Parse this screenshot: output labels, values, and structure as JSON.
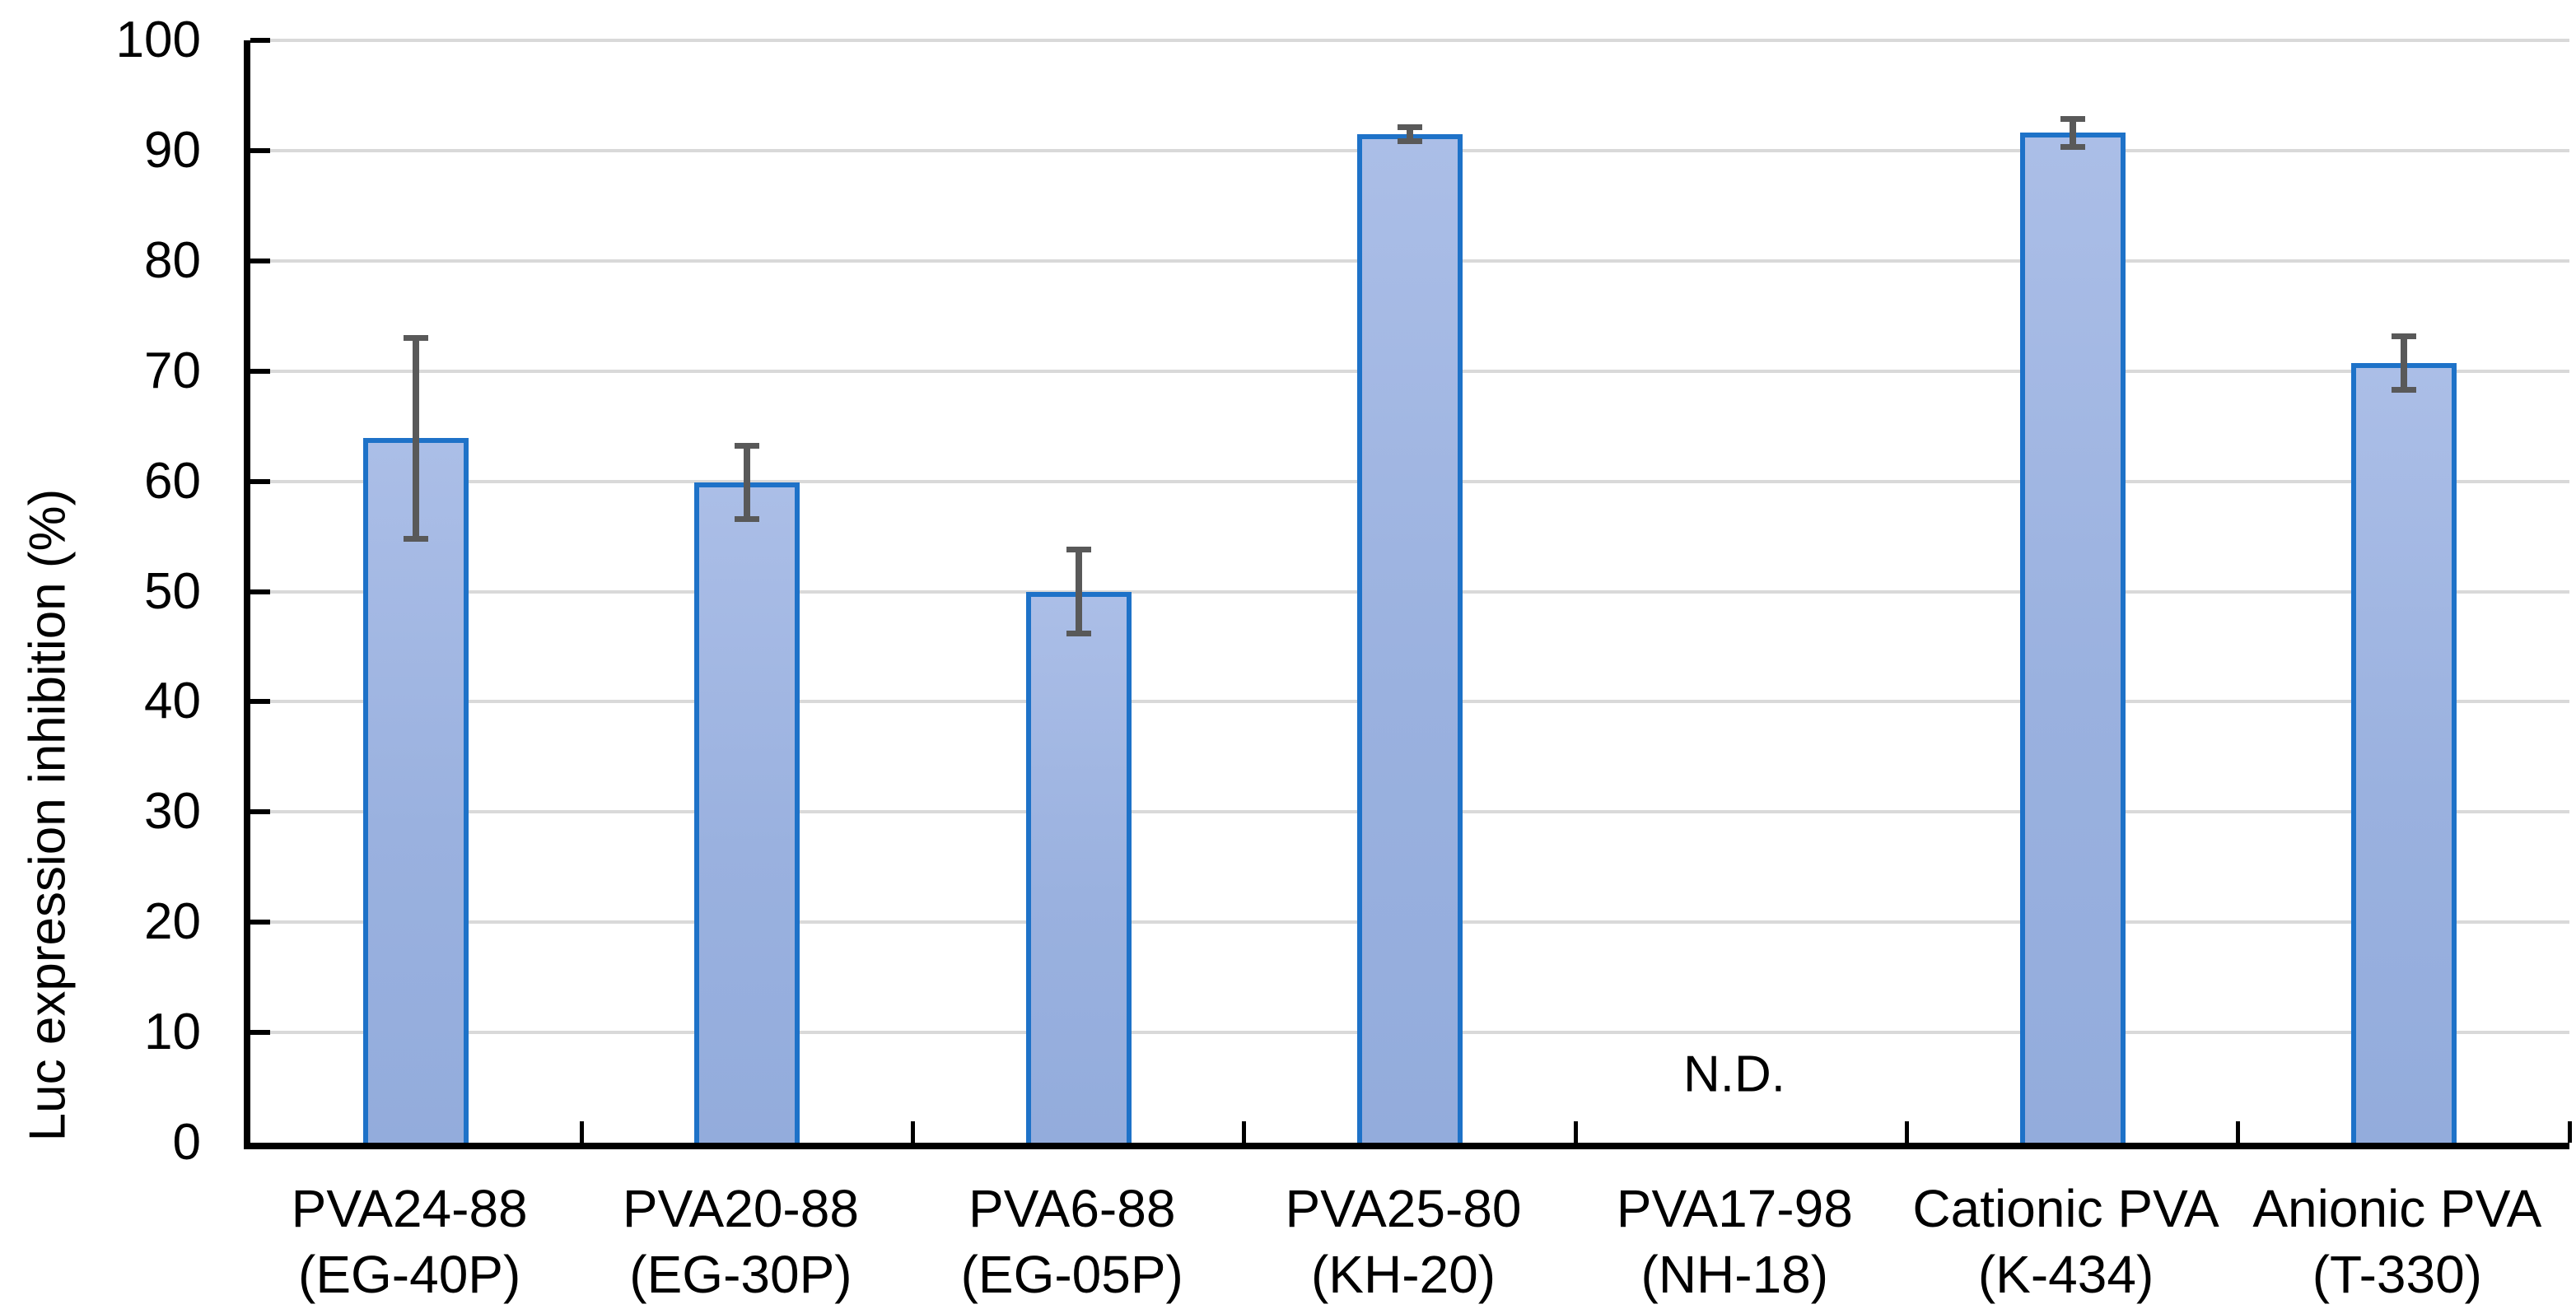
{
  "chart_data": {
    "type": "bar",
    "title": "",
    "ylabel": "Luc expression inhibition (%)",
    "xlabel": "",
    "ylim": [
      0,
      100
    ],
    "ytick_step": 10,
    "yticks": [
      "0",
      "10",
      "20",
      "30",
      "40",
      "50",
      "60",
      "70",
      "80",
      "90",
      "100"
    ],
    "grid": true,
    "legend_position": "none",
    "categories": [
      {
        "line1": "PVA24-88",
        "line2": "(EG-40P)"
      },
      {
        "line1": "PVA20-88",
        "line2": "(EG-30P)"
      },
      {
        "line1": "PVA6-88",
        "line2": "(EG-05P)"
      },
      {
        "line1": "PVA25-80",
        "line2": "(KH-20)"
      },
      {
        "line1": "PVA17-98",
        "line2": "(NH-18)"
      },
      {
        "line1": "Cationic PVA",
        "line2": "(K-434)"
      },
      {
        "line1": "Anionic PVA",
        "line2": "(T-330)"
      }
    ],
    "series": [
      {
        "name": "Luc expression inhibition (%)",
        "values": [
          63.9,
          59.9,
          50.0,
          91.5,
          null,
          91.6,
          70.7
        ],
        "errors": [
          9.4,
          3.6,
          4.1,
          0.9,
          null,
          1.5,
          2.7
        ]
      }
    ],
    "not_detected": {
      "index": 4,
      "label": "N.D."
    },
    "colors": {
      "bar_fill": "#9AB1DF",
      "bar_fill_top": "#ABBEE7",
      "bar_fill_bottom": "#93ACDC",
      "bar_border": "#1E72C8",
      "error_bar": "#595959",
      "gridline": "#D9D9D9",
      "axis": "#000000",
      "text": "#000000",
      "background": "#FFFFFF"
    }
  }
}
